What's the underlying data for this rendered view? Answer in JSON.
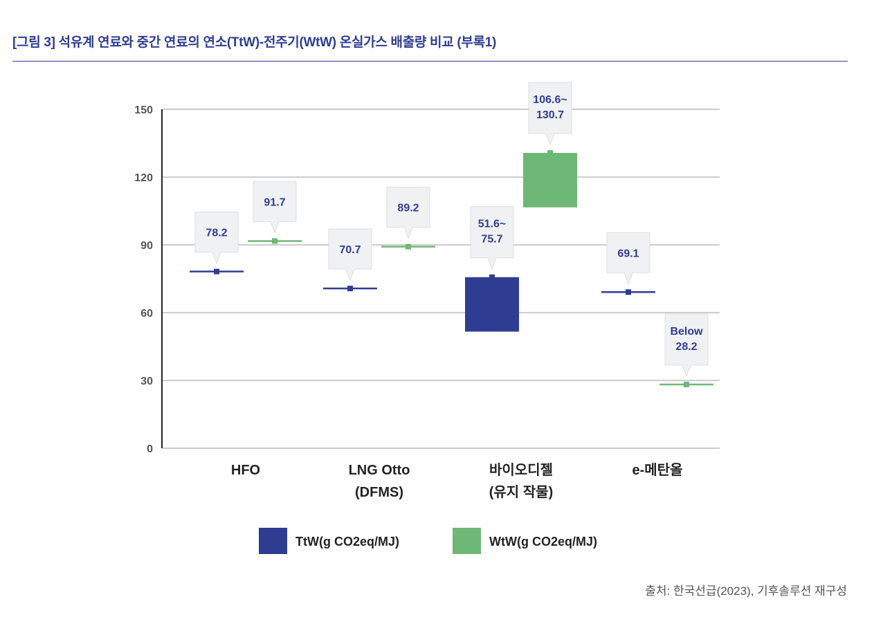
{
  "header": {
    "title": "[그림 3] 석유계 연료와 중간 연료의 연소(TtW)-전주기(WtW) 온실가스 배출량 비교 (부록1)"
  },
  "chart_data": {
    "type": "bar",
    "title": "",
    "xlabel": "",
    "ylabel": "",
    "ylim": [
      0,
      150
    ],
    "yticks": [
      0,
      30,
      60,
      90,
      120,
      150
    ],
    "grid": true,
    "legend_position": "bottom",
    "categories": [
      [
        "HFO"
      ],
      [
        "LNG Otto",
        "(DFMS)"
      ],
      [
        "바이오디젤",
        "(유지 작물)"
      ],
      [
        "e-메탄올"
      ]
    ],
    "series": [
      {
        "name": "TtW(g CO2eq/MJ)",
        "color": "#2e3d91",
        "values": [
          [
            78.2,
            78.2
          ],
          [
            70.7,
            70.7
          ],
          [
            51.6,
            75.7
          ],
          [
            69.1,
            69.1
          ]
        ],
        "labels": [
          [
            "78.2"
          ],
          [
            "70.7"
          ],
          [
            "51.6~",
            "75.7"
          ],
          [
            "69.1"
          ]
        ]
      },
      {
        "name": "WtW(g CO2eq/MJ)",
        "color": "#6db877",
        "values": [
          [
            91.7,
            91.7
          ],
          [
            89.2,
            89.2
          ],
          [
            106.6,
            130.7
          ],
          [
            28.2,
            28.2
          ]
        ],
        "labels": [
          [
            "91.7"
          ],
          [
            "89.2"
          ],
          [
            "106.6~",
            "130.7"
          ],
          [
            "Below",
            "28.2"
          ]
        ]
      }
    ]
  },
  "footer": {
    "source": "출처: 한국선급(2023), 기후솔루션 재구성"
  }
}
